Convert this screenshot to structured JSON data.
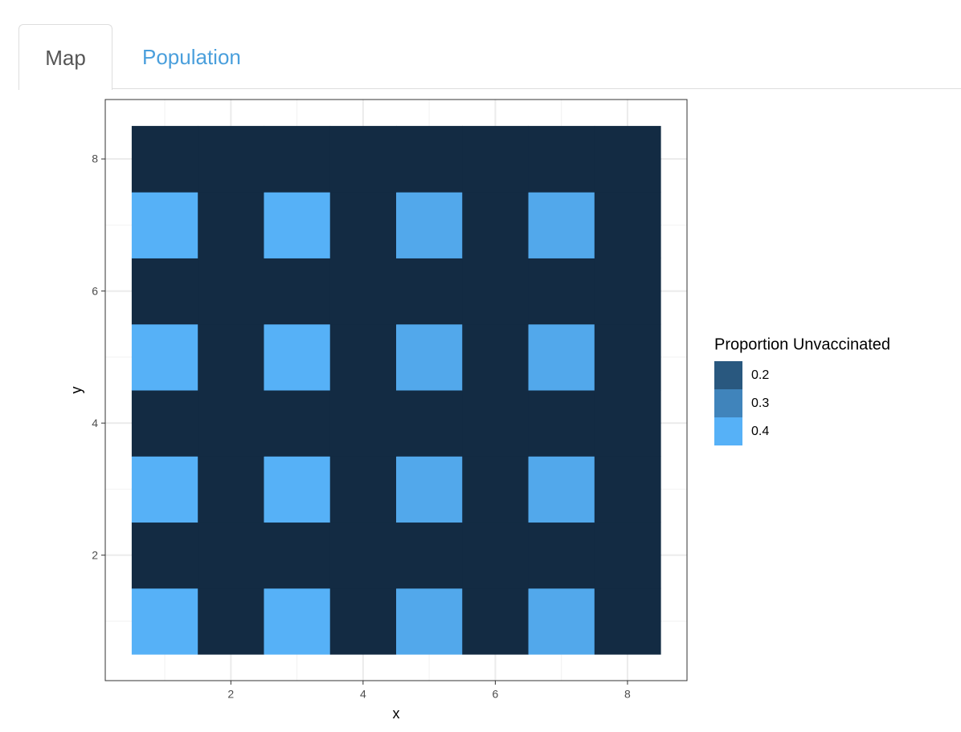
{
  "tabs": [
    "Map",
    "Population"
  ],
  "chart_data": {
    "type": "heatmap",
    "xlabel": "x",
    "ylabel": "y",
    "x": [
      1,
      2,
      3,
      4,
      5,
      6,
      7,
      8
    ],
    "y": [
      1,
      2,
      3,
      4,
      5,
      6,
      7,
      8
    ],
    "z": [
      [
        0.4,
        0.1,
        0.4,
        0.1,
        0.38,
        0.1,
        0.38,
        0.1
      ],
      [
        0.1,
        0.1,
        0.1,
        0.1,
        0.1,
        0.1,
        0.1,
        0.1
      ],
      [
        0.4,
        0.1,
        0.4,
        0.1,
        0.38,
        0.1,
        0.38,
        0.1
      ],
      [
        0.1,
        0.1,
        0.1,
        0.1,
        0.1,
        0.1,
        0.1,
        0.1
      ],
      [
        0.4,
        0.1,
        0.4,
        0.1,
        0.38,
        0.1,
        0.38,
        0.1
      ],
      [
        0.1,
        0.1,
        0.1,
        0.1,
        0.1,
        0.1,
        0.1,
        0.1
      ],
      [
        0.4,
        0.1,
        0.4,
        0.1,
        0.38,
        0.1,
        0.38,
        0.1
      ],
      [
        0.1,
        0.1,
        0.1,
        0.1,
        0.1,
        0.1,
        0.1,
        0.1
      ]
    ],
    "colorscale": [
      "#132B43",
      "#56B1F7"
    ],
    "xlim": [
      0.1,
      8.9
    ],
    "ylim": [
      0.1,
      8.9
    ],
    "xticks": [
      2,
      4,
      6,
      8
    ],
    "yticks": [
      2,
      4,
      6,
      8
    ],
    "grid": true,
    "legend": {
      "title": "Proportion Unvaccinated",
      "values": [
        0.2,
        0.3,
        0.4
      ],
      "position": "right"
    }
  }
}
